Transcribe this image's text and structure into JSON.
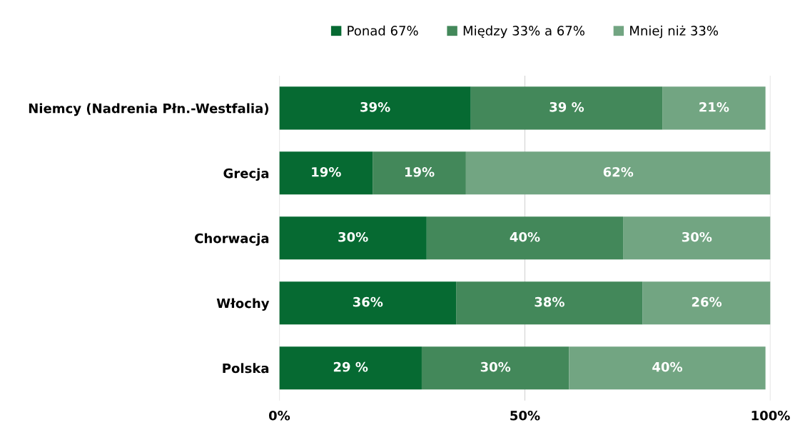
{
  "chart_data": {
    "type": "bar",
    "orientation": "horizontal",
    "stacked": true,
    "categories": [
      "Niemcy (Nadrenia Płn.-Westfalia)",
      "Grecja",
      "Chorwacja",
      "Włochy",
      "Polska"
    ],
    "series": [
      {
        "name": "Ponad 67%",
        "color": "#066a32",
        "values": [
          39,
          19,
          30,
          36,
          29
        ],
        "value_labels": [
          "39%",
          "19%",
          "30%",
          "36%",
          "29 %"
        ]
      },
      {
        "name": "Między 33% a 67%",
        "color": "#43885a",
        "values": [
          39,
          19,
          40,
          38,
          30
        ],
        "value_labels": [
          "39 %",
          "19%",
          "40%",
          "38%",
          "30%"
        ]
      },
      {
        "name": "Mniej niż 33%",
        "color": "#72a582",
        "values": [
          21,
          62,
          30,
          26,
          40
        ],
        "value_labels": [
          "21%",
          "62%",
          "30%",
          "26%",
          "40%"
        ]
      }
    ],
    "xlim": [
      0,
      100
    ],
    "xticks": [
      {
        "value": 0,
        "label": "0%"
      },
      {
        "value": 50,
        "label": "50%"
      },
      {
        "value": 100,
        "label": "100%"
      }
    ],
    "grid": "x",
    "legend": "top"
  }
}
